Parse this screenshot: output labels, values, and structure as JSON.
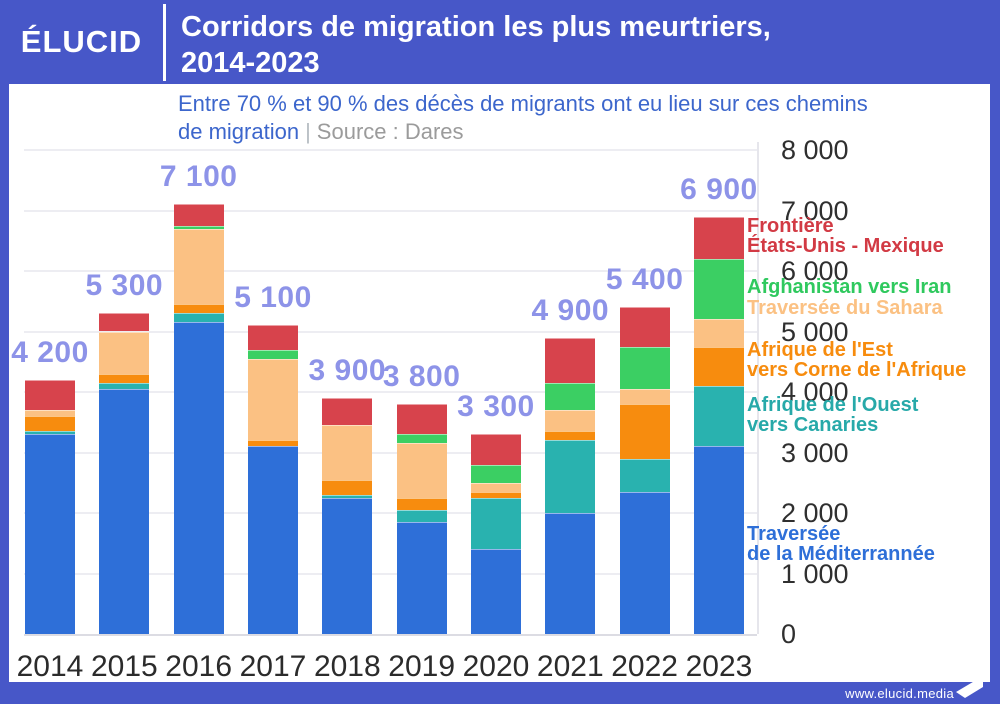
{
  "header": {
    "logo": "ÉLUCID",
    "title_line1": "Corridors de migration les plus meurtriers,",
    "title_line2": "2014-2023"
  },
  "subtitle": {
    "line1": "Entre 70 % et 90 % des décès de migrants ont eu lieu sur ces chemins",
    "line2": "de migration",
    "separator": "|",
    "source": "Source : Dares"
  },
  "footer": {
    "url": "www.elucid.media",
    "flag_icon": "elucid-flag"
  },
  "colors": {
    "frame_blue": "#4757c8",
    "mediterranee_blue": "#2e6fd8",
    "canaries_teal": "#29b2af",
    "corne_orange": "#f78c0e",
    "sahara_peach": "#fbc183",
    "iran_green": "#3bcf63",
    "mexique_red": "#d7434c",
    "total_label_purple": "#8d93e8",
    "subtitle_blue": "#3c66cc",
    "source_gray": "#9b9b9b"
  },
  "chart_data": {
    "type": "bar",
    "stacked": true,
    "title": "Corridors de migration les plus meurtriers, 2014-2023",
    "xlabel": "",
    "ylabel": "",
    "ylim": [
      0,
      8000
    ],
    "grid": true,
    "legend_position": "right",
    "categories": [
      "2014",
      "2015",
      "2016",
      "2017",
      "2018",
      "2019",
      "2020",
      "2021",
      "2022",
      "2023"
    ],
    "totals": [
      4200,
      5300,
      7100,
      5100,
      3900,
      3800,
      3300,
      4900,
      5400,
      6900
    ],
    "total_labels": [
      "4 200",
      "5 300",
      "7 100",
      "5 100",
      "3 900",
      "3 800",
      "3 300",
      "4 900",
      "5 400",
      "6 900"
    ],
    "y_ticks": [
      {
        "value": 0,
        "label": "0"
      },
      {
        "value": 1000,
        "label": "1 000"
      },
      {
        "value": 2000,
        "label": "2 000"
      },
      {
        "value": 3000,
        "label": "3 000"
      },
      {
        "value": 4000,
        "label": "4 000"
      },
      {
        "value": 5000,
        "label": "5 000"
      },
      {
        "value": 6000,
        "label": "6 000"
      },
      {
        "value": 7000,
        "label": "7 000"
      },
      {
        "value": 8000,
        "label": "8 000"
      }
    ],
    "series": [
      {
        "name": "Traversée de la Méditerrannée",
        "color": "#2e6fd8",
        "values": [
          3300,
          4050,
          5150,
          3100,
          2250,
          1850,
          1400,
          2000,
          2350,
          3100
        ]
      },
      {
        "name": "Afrique de l'Ouest vers Canaries",
        "color": "#29b2af",
        "values": [
          50,
          100,
          150,
          0,
          50,
          200,
          850,
          1200,
          550,
          1000
        ]
      },
      {
        "name": "Afrique de l'Est vers Corne de l'Afrique",
        "color": "#f78c0e",
        "values": [
          250,
          150,
          150,
          100,
          250,
          200,
          100,
          150,
          900,
          650
        ]
      },
      {
        "name": "Traversée du Sahara",
        "color": "#fbc183",
        "values": [
          100,
          700,
          1250,
          1350,
          900,
          900,
          150,
          350,
          250,
          450
        ]
      },
      {
        "name": "Afghanistan vers Iran",
        "color": "#3bcf63",
        "values": [
          0,
          0,
          50,
          150,
          0,
          150,
          300,
          450,
          700,
          1000
        ]
      },
      {
        "name": "Frontière États-Unis - Mexique",
        "color": "#d7434c",
        "values": [
          500,
          300,
          350,
          400,
          450,
          500,
          500,
          750,
          650,
          700
        ]
      }
    ],
    "legend": [
      {
        "lines": [
          "Frontière",
          "États-Unis - Mexique"
        ],
        "color": "#d23a44"
      },
      {
        "lines": [
          "Afghanistan vers Iran"
        ],
        "color": "#2fc95e"
      },
      {
        "lines": [
          "Traversée du Sahara"
        ],
        "color": "#fbc183"
      },
      {
        "lines": [
          "Afrique de l'Est",
          "vers Corne de l'Afrique"
        ],
        "color": "#f78c0e"
      },
      {
        "lines": [
          "Afrique de l'Ouest",
          "vers Canaries"
        ],
        "color": "#27a9a9"
      },
      {
        "lines": [
          "Traversée",
          "de la Méditerrannée"
        ],
        "color": "#2e6fd8"
      }
    ]
  }
}
